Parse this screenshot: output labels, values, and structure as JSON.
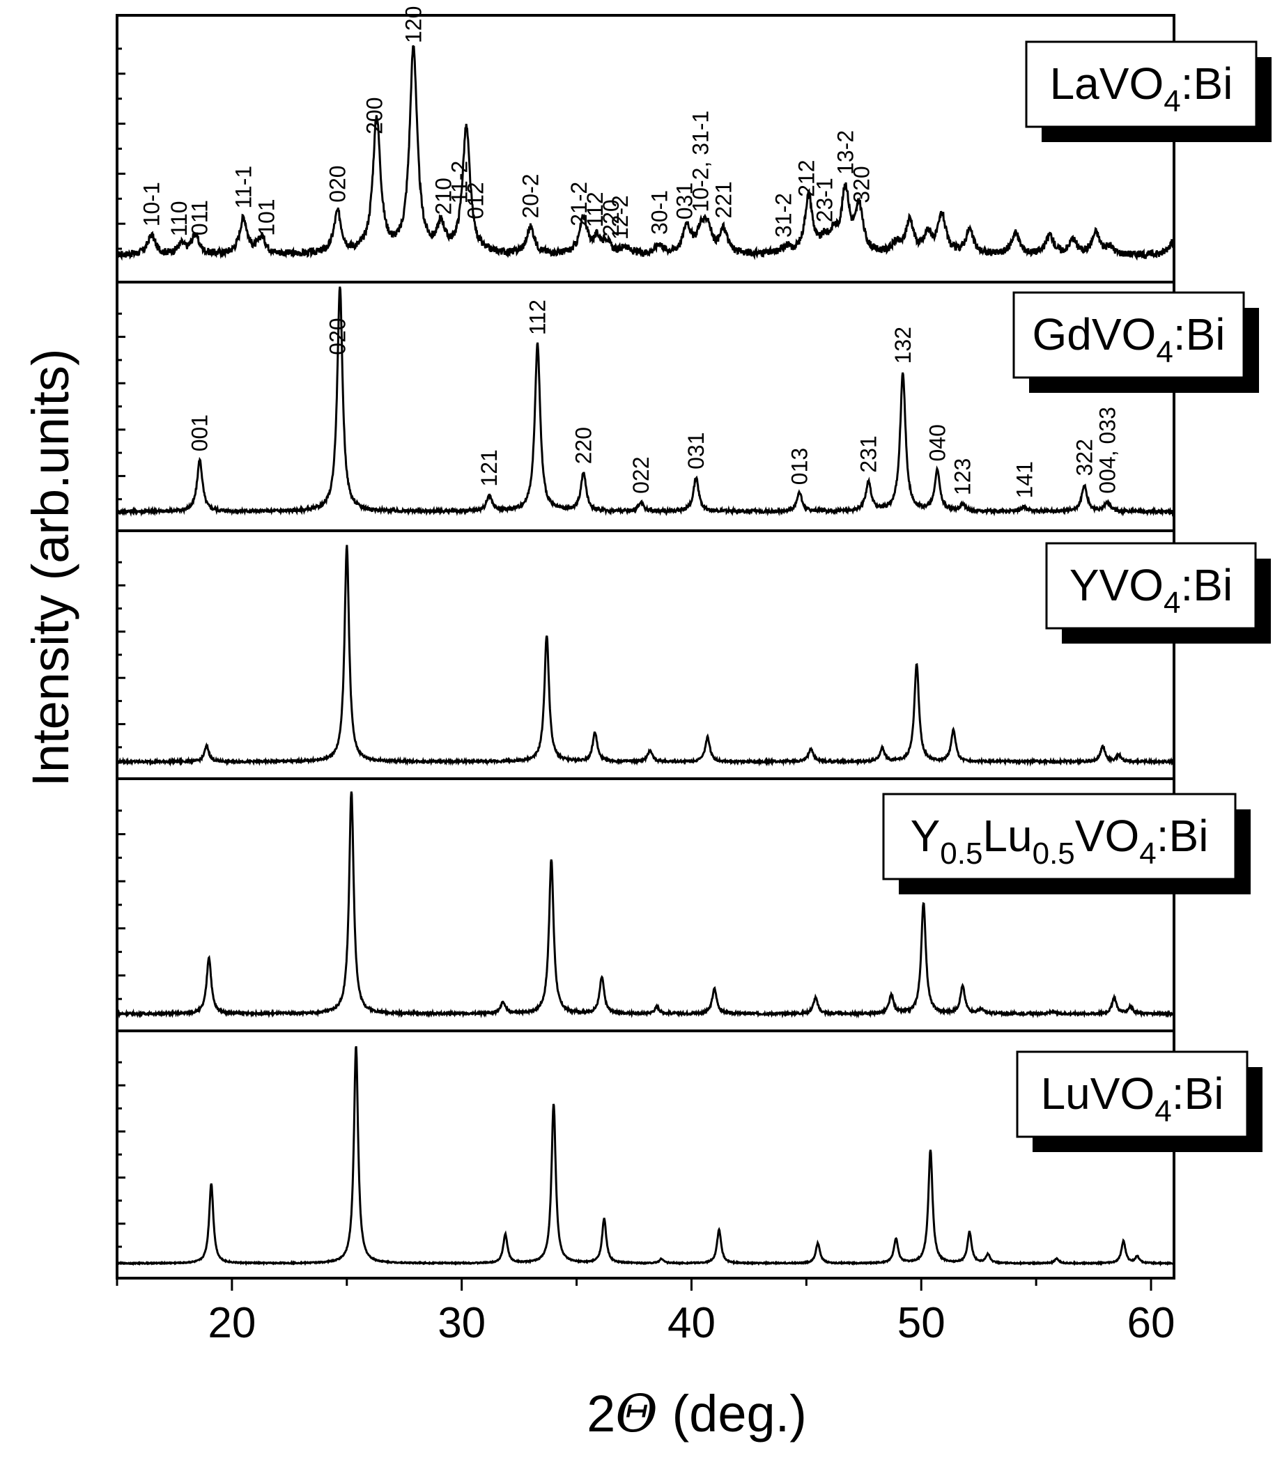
{
  "chart_data": {
    "type": "line",
    "xlabel_prefix": "2",
    "xlabel_symbol": "Θ",
    "xlabel_suffix": " (deg.)",
    "ylabel": "Intensity (arb.units)",
    "xlim": [
      15,
      61
    ],
    "xticks": [
      20,
      30,
      40,
      50,
      60
    ],
    "grid": false,
    "panels": [
      {
        "name": "LaVO4:Bi",
        "label_parts": [
          [
            "LaVO",
            ""
          ],
          [
            "4",
            "sub"
          ],
          [
            ":Bi",
            ""
          ]
        ],
        "series": [
          {
            "peaks": [
              [
                16.5,
                8
              ],
              [
                17.8,
                4
              ],
              [
                18.4,
                8
              ],
              [
                20.5,
                15
              ],
              [
                21.3,
                7
              ],
              [
                24.6,
                17
              ],
              [
                26.3,
                56
              ],
              [
                27.9,
                85
              ],
              [
                29.1,
                11
              ],
              [
                30.2,
                52
              ],
              [
                33.0,
                11
              ],
              [
                35.3,
                15
              ],
              [
                35.9,
                6
              ],
              [
                36.3,
                5
              ],
              [
                37.1,
                3
              ],
              [
                38.6,
                4
              ],
              [
                39.8,
                12
              ],
              [
                40.4,
                9
              ],
              [
                40.7,
                11
              ],
              [
                41.4,
                10
              ],
              [
                44.1,
                3
              ],
              [
                45.1,
                24
              ],
              [
                45.8,
                5
              ],
              [
                46.2,
                7
              ],
              [
                46.7,
                26
              ],
              [
                47.3,
                19
              ],
              [
                48.9,
                4
              ],
              [
                49.5,
                14
              ],
              [
                50.3,
                8
              ],
              [
                50.9,
                16
              ],
              [
                52.1,
                10
              ],
              [
                54.1,
                9
              ],
              [
                55.6,
                8
              ],
              [
                56.6,
                6
              ],
              [
                57.6,
                9
              ],
              [
                58.2,
                3
              ],
              [
                60.9,
                5
              ]
            ],
            "width": 0.2,
            "baseline": 6,
            "ymax": 100
          }
        ],
        "peak_labels": [
          {
            "text": "10-1",
            "x": 16.5
          },
          {
            "text": "110",
            "x": 17.7
          },
          {
            "text": "011",
            "x": 18.6
          },
          {
            "text": "11-1",
            "x": 20.5
          },
          {
            "text": "101",
            "x": 21.5
          },
          {
            "text": "020",
            "x": 24.6
          },
          {
            "text": "200",
            "x": 26.2
          },
          {
            "text": "120",
            "x": 27.9
          },
          {
            "text": "210",
            "x": 29.2
          },
          {
            "text": "11-2",
            "x": 29.9
          },
          {
            "text": "012",
            "x": 30.6
          },
          {
            "text": "20-2",
            "x": 33.0
          },
          {
            "text": "21-2",
            "x": 35.1
          },
          {
            "text": "112",
            "x": 35.8
          },
          {
            "text": "220",
            "x": 36.5
          },
          {
            "text": "12-2",
            "x": 36.9
          },
          {
            "text": "30-1",
            "x": 38.6
          },
          {
            "text": "031",
            "x": 39.7
          },
          {
            "text": "10-2, 31-1",
            "x": 40.4
          },
          {
            "text": "221",
            "x": 41.4
          },
          {
            "text": "31-2",
            "x": 44.0
          },
          {
            "text": "212",
            "x": 45.0
          },
          {
            "text": "23-1",
            "x": 45.8
          },
          {
            "text": "13-2",
            "x": 46.7
          },
          {
            "text": "320",
            "x": 47.4
          }
        ]
      },
      {
        "name": "GdVO4:Bi",
        "label_parts": [
          [
            "GdVO",
            ""
          ],
          [
            "4",
            "sub"
          ],
          [
            ":Bi",
            ""
          ]
        ],
        "series": [
          {
            "peaks": [
              [
                18.6,
                23
              ],
              [
                24.7,
                100
              ],
              [
                31.2,
                7
              ],
              [
                33.3,
                75
              ],
              [
                35.3,
                17
              ],
              [
                37.8,
                4
              ],
              [
                40.2,
                15
              ],
              [
                44.7,
                8
              ],
              [
                47.7,
                13
              ],
              [
                49.2,
                62
              ],
              [
                50.7,
                18
              ],
              [
                51.8,
                3
              ],
              [
                54.5,
                2
              ],
              [
                57.1,
                12
              ],
              [
                58.1,
                4
              ]
            ],
            "width": 0.14,
            "baseline": 3,
            "ymax": 100
          }
        ],
        "peak_labels": [
          {
            "text": "001",
            "x": 18.6
          },
          {
            "text": "020",
            "x": 24.6
          },
          {
            "text": "121",
            "x": 31.2
          },
          {
            "text": "112",
            "x": 33.3
          },
          {
            "text": "220",
            "x": 35.3
          },
          {
            "text": "022",
            "x": 37.8
          },
          {
            "text": "031",
            "x": 40.2
          },
          {
            "text": "013",
            "x": 44.7
          },
          {
            "text": "231",
            "x": 47.7
          },
          {
            "text": "132",
            "x": 49.2
          },
          {
            "text": "040",
            "x": 50.7
          },
          {
            "text": "123",
            "x": 51.8
          },
          {
            "text": "141",
            "x": 54.5
          },
          {
            "text": "322",
            "x": 57.1
          },
          {
            "text": "004, 033",
            "x": 58.1
          }
        ]
      },
      {
        "name": "YVO4:Bi",
        "label_parts": [
          [
            "YVO",
            ""
          ],
          [
            "4",
            "sub"
          ],
          [
            ":Bi",
            ""
          ]
        ],
        "series": [
          {
            "peaks": [
              [
                18.9,
                7
              ],
              [
                25.0,
                97
              ],
              [
                33.7,
                57
              ],
              [
                35.8,
                13
              ],
              [
                38.2,
                5
              ],
              [
                40.7,
                11
              ],
              [
                45.2,
                6
              ],
              [
                48.3,
                6
              ],
              [
                49.8,
                44
              ],
              [
                51.4,
                14
              ],
              [
                57.9,
                7
              ],
              [
                58.6,
                3
              ]
            ],
            "width": 0.12,
            "baseline": 2,
            "ymax": 100
          }
        ],
        "peak_labels": []
      },
      {
        "name": "Y0.5Lu0.5VO4:Bi",
        "label_parts": [
          [
            "Y",
            ""
          ],
          [
            "0.5",
            "sub"
          ],
          [
            "Lu",
            ""
          ],
          [
            "0.5",
            "sub"
          ],
          [
            "VO",
            ""
          ],
          [
            "4",
            "sub"
          ],
          [
            ":Bi",
            ""
          ]
        ],
        "series": [
          {
            "peaks": [
              [
                19.0,
                25
              ],
              [
                25.2,
                98
              ],
              [
                31.8,
                5
              ],
              [
                33.9,
                68
              ],
              [
                36.1,
                16
              ],
              [
                38.5,
                3
              ],
              [
                41.0,
                11
              ],
              [
                45.4,
                7
              ],
              [
                48.7,
                8
              ],
              [
                50.1,
                49
              ],
              [
                51.8,
                12
              ],
              [
                52.6,
                2
              ],
              [
                55.7,
                1
              ],
              [
                58.4,
                7
              ],
              [
                59.1,
                3
              ]
            ],
            "width": 0.12,
            "baseline": 2,
            "ymax": 100
          }
        ],
        "peak_labels": []
      },
      {
        "name": "LuVO4:Bi",
        "label_parts": [
          [
            "LuVO",
            ""
          ],
          [
            "4",
            "sub"
          ],
          [
            ":Bi",
            ""
          ]
        ],
        "series": [
          {
            "peaks": [
              [
                19.1,
                36
              ],
              [
                25.4,
                98
              ],
              [
                31.9,
                13
              ],
              [
                34.0,
                72
              ],
              [
                36.2,
                20
              ],
              [
                38.7,
                2
              ],
              [
                41.2,
                15
              ],
              [
                45.5,
                9
              ],
              [
                48.9,
                11
              ],
              [
                50.4,
                51
              ],
              [
                52.1,
                14
              ],
              [
                52.9,
                4
              ],
              [
                55.9,
                2
              ],
              [
                58.8,
                10
              ],
              [
                59.4,
                3
              ]
            ],
            "width": 0.11,
            "baseline": 1,
            "ymax": 100
          }
        ],
        "peak_labels": []
      }
    ]
  }
}
